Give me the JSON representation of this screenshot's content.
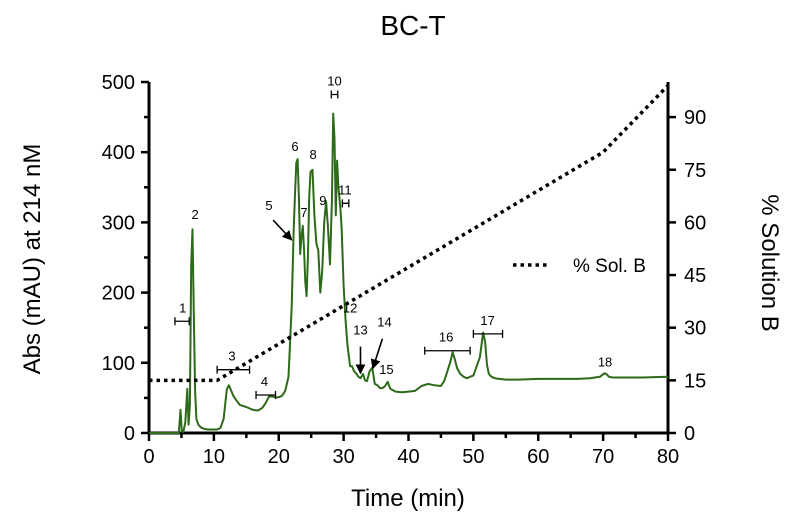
{
  "chart_data": {
    "type": "line",
    "title": "BC-T",
    "xlabel": "Time (min)",
    "ylabel": "Abs (mAU) at 214 nM",
    "y2label": "% Solution B",
    "xlim": [
      0,
      80
    ],
    "ylim": [
      0,
      500
    ],
    "y2lim": [
      0,
      100
    ],
    "xticks": [
      "0",
      "10",
      "20",
      "30",
      "40",
      "50",
      "60",
      "70",
      "80"
    ],
    "yticks": [
      "0",
      "100",
      "200",
      "300",
      "400",
      "500"
    ],
    "y2ticks": [
      "0",
      "15",
      "30",
      "45",
      "60",
      "75",
      "90"
    ],
    "grid": false,
    "legend_position": "right",
    "colors": {
      "trace": "#2d6a1a",
      "gradient": "#000000"
    },
    "series": [
      {
        "axis": "left",
        "style": "solid",
        "x": [
          0,
          4.6,
          4.85,
          5.05,
          5.3,
          5.6,
          5.9,
          6.1,
          6.3,
          6.5,
          6.7,
          6.9,
          7.1,
          7.3,
          7.6,
          8,
          8.5,
          9,
          9.5,
          10,
          10.5,
          11,
          11.5,
          12,
          12.3,
          12.6,
          13,
          13.5,
          14,
          15,
          16,
          16.8,
          17.5,
          18,
          18.5,
          19,
          19.5,
          20,
          20.5,
          21,
          21.5,
          22,
          22.3,
          22.5,
          22.7,
          22.9,
          23.1,
          23.3,
          23.5,
          23.7,
          23.9,
          24.1,
          24.3,
          24.5,
          24.7,
          24.9,
          25.2,
          25.5,
          25.8,
          26.1,
          26.4,
          26.7,
          27,
          27.3,
          27.6,
          27.9,
          28.2,
          28.4,
          28.6,
          28.8,
          29,
          29.2,
          29.5,
          29.7,
          30,
          30.3,
          30.6,
          31,
          31.3,
          31.6,
          32,
          32.3,
          32.6,
          33,
          33.3,
          33.6,
          34,
          34.4,
          34.8,
          35.2,
          35.6,
          36,
          36.4,
          36.8,
          37.2,
          38,
          39,
          40,
          41,
          42,
          43,
          44,
          45,
          45.5,
          46,
          46.5,
          46.8,
          47.1,
          47.5,
          48,
          48.5,
          49,
          50,
          51,
          51.5,
          51.8,
          52.1,
          52.4,
          52.8,
          53.3,
          54,
          55,
          57,
          60,
          63,
          66,
          68,
          69.5,
          70.2,
          70.5,
          70.9,
          71.5,
          73,
          76,
          80
        ],
        "y": [
          0,
          0,
          33,
          2,
          2,
          15,
          63,
          12,
          40,
          240,
          290,
          170,
          60,
          20,
          12,
          8,
          6,
          5,
          5,
          5,
          5,
          7,
          20,
          62,
          68,
          62,
          53,
          46,
          40,
          37,
          33,
          32,
          36,
          43,
          52,
          52,
          51,
          51,
          53,
          60,
          80,
          180,
          290,
          340,
          385,
          390,
          335,
          255,
          280,
          295,
          260,
          215,
          195,
          250,
          335,
          372,
          375,
          310,
          270,
          260,
          200,
          230,
          300,
          330,
          290,
          240,
          330,
          455,
          420,
          310,
          388,
          350,
          320,
          290,
          210,
          160,
          125,
          95,
          95,
          88,
          84,
          80,
          78,
          84,
          75,
          74,
          88,
          93,
          70,
          68,
          64,
          64,
          67,
          73,
          63,
          59,
          58,
          59,
          60,
          67,
          70,
          68,
          67,
          74,
          88,
          103,
          115,
          106,
          92,
          84,
          80,
          78,
          82,
          108,
          143,
          130,
          97,
          84,
          80,
          78,
          77,
          76,
          76,
          77,
          77,
          77,
          78,
          80,
          85,
          84,
          80,
          79,
          79,
          79,
          80
        ]
      },
      {
        "name": "% Sol. B",
        "axis": "right",
        "style": "dotted",
        "x": [
          0,
          10.5,
          70,
          80
        ],
        "y": [
          15,
          15,
          80,
          99
        ]
      }
    ],
    "annotations": [
      {
        "label": "1",
        "x": 5.2,
        "y": 172,
        "bracket": [
          4,
          6.2
        ]
      },
      {
        "label": "2",
        "x": 7.1,
        "y": 305
      },
      {
        "label": "3",
        "x": 12.8,
        "y": 103,
        "bracket": [
          10.5,
          15.5
        ]
      },
      {
        "label": "4",
        "x": 17.8,
        "y": 67,
        "bracket": [
          16.5,
          19.5
        ]
      },
      {
        "label": "5",
        "x": 18.5,
        "y": 318,
        "arrow_to": [
          22,
          275
        ]
      },
      {
        "label": "6",
        "x": 22.5,
        "y": 402
      },
      {
        "label": "7",
        "x": 23.9,
        "y": 308
      },
      {
        "label": "8",
        "x": 25.3,
        "y": 390
      },
      {
        "label": "9",
        "x": 26.8,
        "y": 325
      },
      {
        "label": "10",
        "x": 28.6,
        "y": 495,
        "bracket": [
          28.1,
          29.1
        ]
      },
      {
        "label": "11",
        "x": 30.2,
        "y": 340,
        "bracket": [
          29.8,
          30.8
        ]
      },
      {
        "label": "12",
        "x": 31,
        "y": 172
      },
      {
        "label": "13",
        "x": 32.6,
        "y": 140,
        "arrow_to": [
          32.6,
          85
        ]
      },
      {
        "label": "14",
        "x": 36.3,
        "y": 152,
        "arrow_to": [
          34.5,
          92
        ]
      },
      {
        "label": "15",
        "x": 36.6,
        "y": 84
      },
      {
        "label": "16",
        "x": 45.8,
        "y": 130,
        "bracket": [
          42.5,
          49.5
        ]
      },
      {
        "label": "17",
        "x": 52.2,
        "y": 154,
        "bracket": [
          50,
          54.5
        ]
      },
      {
        "label": "18",
        "x": 70.3,
        "y": 95
      }
    ]
  }
}
